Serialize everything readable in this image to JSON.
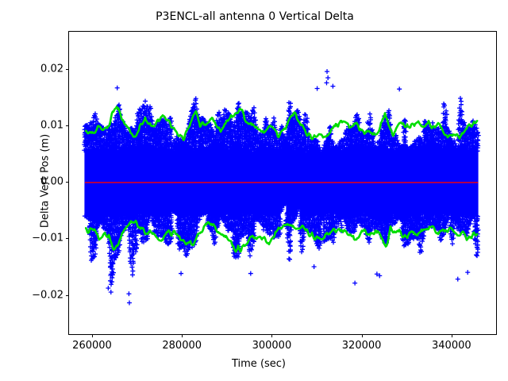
{
  "figure": {
    "background": "#ffffff"
  },
  "chart_data": {
    "type": "scatter",
    "title": "P3ENCL-all antenna 0 Vertical Delta",
    "xlabel": "Time (sec)",
    "ylabel": "Delta Vert Pos (m)",
    "xlim": [
      254700,
      350100
    ],
    "ylim": [
      -0.0271,
      0.0268
    ],
    "xticks": [
      260000,
      280000,
      300000,
      320000,
      340000
    ],
    "xtick_labels": [
      "260000",
      "280000",
      "300000",
      "320000",
      "340000"
    ],
    "yticks": [
      -0.02,
      -0.01,
      0.0,
      0.01,
      0.02
    ],
    "ytick_labels": [
      "−0.02",
      "−0.01",
      "0.00",
      "0.01",
      "0.02"
    ],
    "grid": false,
    "legend": null,
    "colors": {
      "samples": "#0000ff",
      "envelope": "#00dd00",
      "zero_line": "#ff0000",
      "frame": "#000000",
      "text": "#000000"
    },
    "series": [
      {
        "name": "vertical delta samples",
        "type": "scatter",
        "marker": "+",
        "color": "#0000ff",
        "x_range_sec": [
          258400,
          345900
        ],
        "core_band_halfwidth_m": 0.0062,
        "spike_profile": {
          "t": [
            258400,
            259500,
            260500,
            261500,
            262500,
            263500,
            264500,
            265500,
            266400,
            267500,
            268300,
            269300,
            270500,
            271500,
            272500,
            273500,
            274500,
            275700,
            276800,
            278000,
            279300,
            280500,
            281700,
            283100,
            284200,
            285500,
            286500,
            287700,
            289000,
            290300,
            291500,
            292900,
            294200,
            295300,
            296500,
            297800,
            299000,
            300200,
            301300,
            302600,
            303800,
            304900,
            306100,
            307300,
            308600,
            310000,
            311300,
            312300,
            313500,
            314500,
            315800,
            317000,
            318300,
            319500,
            320800,
            322000,
            323300,
            324600,
            325800,
            327000,
            328400,
            329600,
            330900,
            332200,
            333500,
            334800,
            336100,
            337400,
            338700,
            340000,
            341300,
            342600,
            343900,
            345000,
            345900
          ],
          "up": [
            0.011,
            0.0115,
            0.012,
            0.0125,
            0.012,
            0.013,
            0.0145,
            0.0167,
            0.016,
            0.0125,
            0.012,
            0.0125,
            0.013,
            0.0158,
            0.0155,
            0.013,
            0.0145,
            0.015,
            0.0138,
            0.0135,
            0.0135,
            0.011,
            0.012,
            0.0148,
            0.0128,
            0.0132,
            0.0141,
            0.0125,
            0.0137,
            0.0125,
            0.013,
            0.0158,
            0.013,
            0.0135,
            0.013,
            0.0115,
            0.0125,
            0.0145,
            0.011,
            0.0125,
            0.0155,
            0.014,
            0.0135,
            0.0125,
            0.0155,
            0.0165,
            0.014,
            0.018,
            0.0165,
            0.015,
            0.0145,
            0.0145,
            0.013,
            0.014,
            0.0155,
            0.015,
            0.0155,
            0.0135,
            0.014,
            0.0125,
            0.016,
            0.0155,
            0.013,
            0.0145,
            0.014,
            0.014,
            0.0155,
            0.0143,
            0.0145,
            0.015,
            0.0155,
            0.015,
            0.014,
            0.0145,
            0.0135
          ],
          "low": [
            -0.012,
            -0.0145,
            -0.014,
            -0.012,
            -0.015,
            -0.0185,
            -0.019,
            -0.015,
            -0.0125,
            -0.0135,
            -0.0205,
            -0.0165,
            -0.0125,
            -0.012,
            -0.0115,
            -0.011,
            -0.0125,
            -0.013,
            -0.0135,
            -0.018,
            -0.0162,
            -0.013,
            -0.0135,
            -0.013,
            -0.011,
            -0.011,
            -0.0115,
            -0.012,
            -0.013,
            -0.0135,
            -0.014,
            -0.015,
            -0.0145,
            -0.0162,
            -0.0135,
            -0.0125,
            -0.012,
            -0.0125,
            -0.012,
            -0.0152,
            -0.014,
            -0.0125,
            -0.012,
            -0.0135,
            -0.015,
            -0.0135,
            -0.013,
            -0.013,
            -0.0125,
            -0.0145,
            -0.013,
            -0.0125,
            -0.017,
            -0.014,
            -0.0135,
            -0.0145,
            -0.016,
            -0.0168,
            -0.0135,
            -0.0125,
            -0.013,
            -0.0135,
            -0.013,
            -0.0135,
            -0.013,
            -0.0125,
            -0.013,
            -0.0135,
            -0.014,
            -0.0158,
            -0.0165,
            -0.014,
            -0.0145,
            -0.015,
            -0.014
          ]
        },
        "outliers": [
          [
            312300,
            0.0196
          ],
          [
            312500,
            0.0185
          ],
          [
            312200,
            0.0176
          ],
          [
            313600,
            0.017
          ],
          [
            265600,
            0.0167
          ],
          [
            310100,
            0.0166
          ],
          [
            328400,
            0.0165
          ],
          [
            283100,
            0.0148
          ],
          [
            268300,
            -0.0214
          ],
          [
            268200,
            -0.0198
          ],
          [
            264200,
            -0.0195
          ],
          [
            263600,
            -0.0188
          ],
          [
            318500,
            -0.0179
          ],
          [
            341400,
            -0.0172
          ],
          [
            324000,
            -0.0166
          ],
          [
            323400,
            -0.0163
          ],
          [
            279800,
            -0.0162
          ],
          [
            295300,
            -0.0162
          ],
          [
            343600,
            -0.016
          ],
          [
            309400,
            -0.015
          ]
        ]
      },
      {
        "name": "upper envelope",
        "type": "line",
        "color": "#00dd00",
        "linewidth": 2.6,
        "t": [
          258400,
          259300,
          260400,
          261400,
          262500,
          263500,
          264400,
          265500,
          266400,
          267400,
          268500,
          269500,
          270600,
          271800,
          273100,
          274300,
          275700,
          276800,
          278000,
          279300,
          280500,
          281700,
          283100,
          284000,
          285100,
          286300,
          287400,
          288600,
          289900,
          290900,
          291800,
          292900,
          293900,
          294800,
          296000,
          297800,
          299000,
          300100,
          301300,
          302600,
          303800,
          304900,
          306100,
          307400,
          308800,
          310200,
          311600,
          312800,
          313900,
          314900,
          316000,
          317200,
          318500,
          319500,
          320800,
          321800,
          322500,
          323800,
          325200,
          326100,
          327000,
          328200,
          329300,
          330500,
          331600,
          332600,
          333700,
          334900,
          336000,
          337200,
          338400,
          339700,
          340900,
          342000,
          343000,
          344100,
          345000,
          345900
        ],
        "v": [
          0.0092,
          0.009,
          0.0086,
          0.0095,
          0.0092,
          0.0098,
          0.0118,
          0.0136,
          0.012,
          0.01,
          0.0089,
          0.0082,
          0.0098,
          0.0113,
          0.0099,
          0.0106,
          0.012,
          0.0111,
          0.0094,
          0.008,
          0.0078,
          0.01,
          0.0126,
          0.01,
          0.0103,
          0.0112,
          0.0107,
          0.0094,
          0.0103,
          0.0112,
          0.0122,
          0.0131,
          0.0115,
          0.0103,
          0.0095,
          0.0087,
          0.0095,
          0.0098,
          0.0082,
          0.009,
          0.0108,
          0.0125,
          0.0108,
          0.009,
          0.0081,
          0.008,
          0.0084,
          0.0089,
          0.0095,
          0.0103,
          0.0108,
          0.0101,
          0.0103,
          0.0095,
          0.009,
          0.0086,
          0.0082,
          0.0094,
          0.0122,
          0.0095,
          0.008,
          0.0098,
          0.0104,
          0.01,
          0.0103,
          0.0106,
          0.0094,
          0.0103,
          0.01,
          0.0098,
          0.0086,
          0.0082,
          0.008,
          0.0084,
          0.0094,
          0.01,
          0.0102,
          0.011
        ]
      },
      {
        "name": "lower envelope",
        "type": "line",
        "color": "#00dd00",
        "linewidth": 2.6,
        "t": [
          258400,
          259500,
          260600,
          261600,
          262700,
          263700,
          264800,
          265800,
          266900,
          268000,
          269000,
          270200,
          271300,
          272400,
          273600,
          274700,
          275900,
          277100,
          278400,
          279600,
          280800,
          282100,
          283100,
          284600,
          285800,
          287000,
          288300,
          289500,
          290700,
          292200,
          293200,
          294500,
          295700,
          297100,
          298300,
          299600,
          300800,
          302100,
          303500,
          304500,
          305800,
          307200,
          308400,
          309800,
          311100,
          312300,
          313700,
          315100,
          316200,
          317400,
          318700,
          319900,
          321000,
          322000,
          323100,
          324300,
          325400,
          326400,
          327700,
          328900,
          330100,
          331400,
          332600,
          333800,
          335100,
          336300,
          337500,
          338800,
          340000,
          341300,
          342500,
          343700,
          344800,
          345900
        ],
        "v": [
          -0.0086,
          -0.0085,
          -0.0087,
          -0.0105,
          -0.0093,
          -0.0098,
          -0.0122,
          -0.0113,
          -0.009,
          -0.0077,
          -0.007,
          -0.0073,
          -0.0086,
          -0.0096,
          -0.0087,
          -0.0099,
          -0.01,
          -0.009,
          -0.0092,
          -0.01,
          -0.0106,
          -0.0112,
          -0.01,
          -0.0082,
          -0.007,
          -0.0078,
          -0.0092,
          -0.0098,
          -0.0106,
          -0.012,
          -0.0118,
          -0.0104,
          -0.01,
          -0.0094,
          -0.01,
          -0.0106,
          -0.0088,
          -0.0085,
          -0.0072,
          -0.0078,
          -0.008,
          -0.0082,
          -0.0092,
          -0.01,
          -0.0104,
          -0.0095,
          -0.0087,
          -0.0081,
          -0.0083,
          -0.0092,
          -0.0099,
          -0.009,
          -0.0087,
          -0.0092,
          -0.0086,
          -0.01,
          -0.0116,
          -0.0083,
          -0.0087,
          -0.0092,
          -0.0094,
          -0.0088,
          -0.0092,
          -0.009,
          -0.0082,
          -0.0084,
          -0.009,
          -0.0084,
          -0.0085,
          -0.0095,
          -0.0092,
          -0.0101,
          -0.0094,
          -0.009
        ]
      },
      {
        "name": "zero reference line",
        "type": "hline",
        "color": "#ff0000",
        "linewidth": 1.4,
        "y": 0.0,
        "x_range_sec": [
          258400,
          345900
        ]
      }
    ]
  }
}
